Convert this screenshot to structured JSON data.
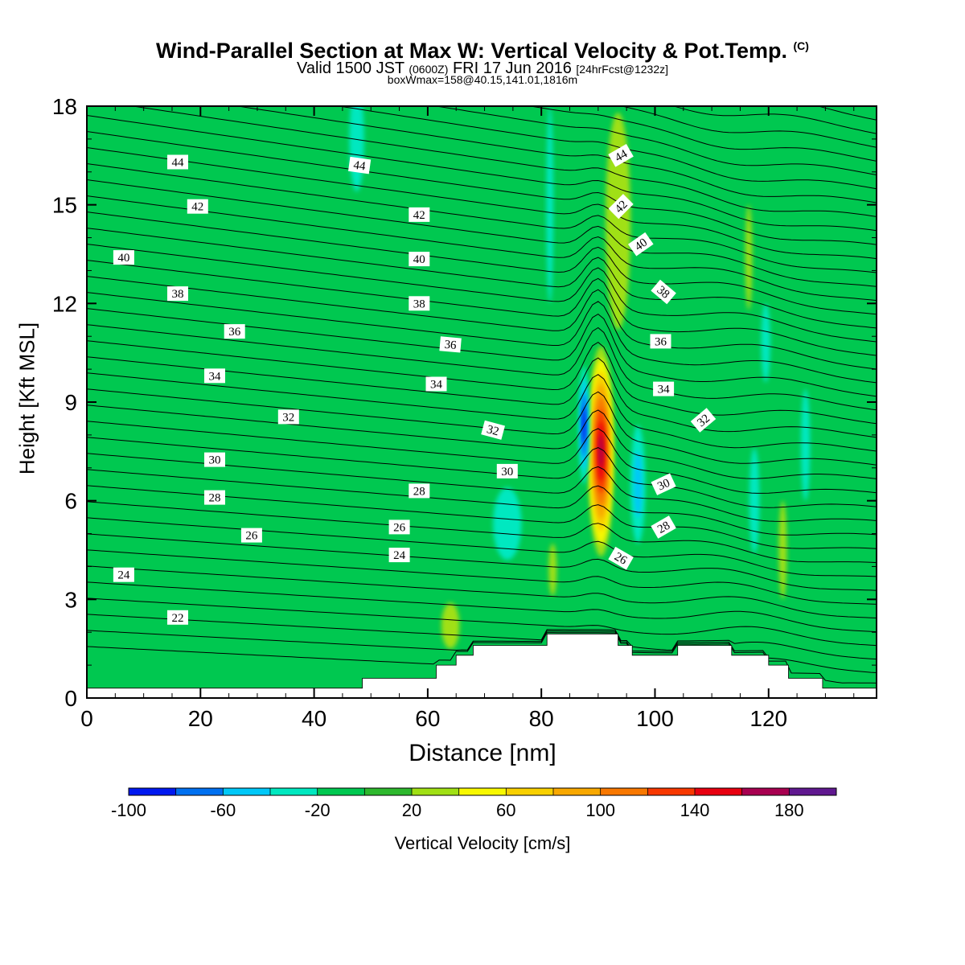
{
  "header": {
    "title": "Wind-Parallel Section at Max W: Vertical Velocity & Pot.Temp.",
    "copyright": "(C)",
    "valid_prefix": "Valid 1500 JST",
    "valid_zulu": "(0600Z)",
    "valid_date": "FRI 17 Jun 2016",
    "forecast": "[24hrFcst@1232z]",
    "boxwmax": "boxWmax=158@40.15,141.01,1816m"
  },
  "chart_data": {
    "type": "heatmap",
    "title": "Wind-Parallel Section at Max W: Vertical Velocity & Pot.Temp.",
    "xlabel": "Distance [nm]",
    "ylabel": "Height [Kft MSL]",
    "xlim": [
      0,
      139
    ],
    "ylim": [
      0,
      18
    ],
    "x_ticks": [
      0,
      20,
      40,
      60,
      80,
      100,
      120
    ],
    "y_ticks": [
      0,
      3,
      6,
      9,
      12,
      15,
      18
    ],
    "colorbar": {
      "label": "Vertical Velocity [cm/s]",
      "levels": [
        -100,
        -80,
        -60,
        -40,
        -20,
        0,
        20,
        40,
        60,
        80,
        100,
        120,
        140,
        160,
        180,
        200
      ],
      "tick_labels": [
        "-100",
        "-60",
        "-20",
        "20",
        "60",
        "100",
        "140",
        "180"
      ],
      "colors": [
        "#0018f0",
        "#0070f0",
        "#00c8f8",
        "#00e8c0",
        "#00c850",
        "#2db82d",
        "#a0e014",
        "#f8f800",
        "#f8d000",
        "#f8a800",
        "#f87800",
        "#f83800",
        "#e80010",
        "#a80050",
        "#601890"
      ]
    },
    "background_color": "#00c850",
    "theta_contours": {
      "interval": 1,
      "labels": [
        {
          "text": "44",
          "x": 16,
          "y": 16.3,
          "rot": 0
        },
        {
          "text": "44",
          "x": 48,
          "y": 16.2,
          "rot": 8
        },
        {
          "text": "44",
          "x": 94,
          "y": 16.5,
          "rot": -30
        },
        {
          "text": "42",
          "x": 19.5,
          "y": 14.95,
          "rot": 0
        },
        {
          "text": "42",
          "x": 58.5,
          "y": 14.7,
          "rot": 0
        },
        {
          "text": "42",
          "x": 94,
          "y": 14.95,
          "rot": -45
        },
        {
          "text": "40",
          "x": 6.5,
          "y": 13.4,
          "rot": 0
        },
        {
          "text": "40",
          "x": 58.5,
          "y": 13.35,
          "rot": 0
        },
        {
          "text": "40",
          "x": 97.5,
          "y": 13.8,
          "rot": -35
        },
        {
          "text": "38",
          "x": 16,
          "y": 12.3,
          "rot": 0
        },
        {
          "text": "38",
          "x": 58.5,
          "y": 12.0,
          "rot": 0
        },
        {
          "text": "38",
          "x": 101.5,
          "y": 12.35,
          "rot": 40
        },
        {
          "text": "36",
          "x": 26,
          "y": 11.15,
          "rot": 0
        },
        {
          "text": "36",
          "x": 64,
          "y": 10.75,
          "rot": 5
        },
        {
          "text": "36",
          "x": 101,
          "y": 10.85,
          "rot": 0
        },
        {
          "text": "34",
          "x": 22.5,
          "y": 9.8,
          "rot": 0
        },
        {
          "text": "34",
          "x": 61.5,
          "y": 9.55,
          "rot": 0
        },
        {
          "text": "34",
          "x": 101.5,
          "y": 9.4,
          "rot": 0
        },
        {
          "text": "32",
          "x": 35.5,
          "y": 8.55,
          "rot": 0
        },
        {
          "text": "32",
          "x": 71.5,
          "y": 8.15,
          "rot": 15
        },
        {
          "text": "32",
          "x": 108.5,
          "y": 8.45,
          "rot": -40
        },
        {
          "text": "30",
          "x": 22.5,
          "y": 7.25,
          "rot": 0
        },
        {
          "text": "30",
          "x": 74,
          "y": 6.9,
          "rot": 0
        },
        {
          "text": "30",
          "x": 101.5,
          "y": 6.5,
          "rot": -25
        },
        {
          "text": "28",
          "x": 22.5,
          "y": 6.1,
          "rot": 0
        },
        {
          "text": "28",
          "x": 58.5,
          "y": 6.3,
          "rot": 0
        },
        {
          "text": "28",
          "x": 101.5,
          "y": 5.2,
          "rot": -30
        },
        {
          "text": "26",
          "x": 29,
          "y": 4.95,
          "rot": 0
        },
        {
          "text": "26",
          "x": 55,
          "y": 5.2,
          "rot": 0
        },
        {
          "text": "26",
          "x": 94,
          "y": 4.25,
          "rot": 30
        },
        {
          "text": "24",
          "x": 6.5,
          "y": 3.75,
          "rot": 0
        },
        {
          "text": "24",
          "x": 55,
          "y": 4.35,
          "rot": 0
        },
        {
          "text": "22",
          "x": 16,
          "y": 2.45,
          "rot": 0
        }
      ]
    },
    "vertical_velocity_features": [
      {
        "x": 90.5,
        "y": 7.5,
        "rx": 2.3,
        "ry": 3.2,
        "v": 160
      },
      {
        "x": 87.5,
        "y": 8.3,
        "rx": 0.9,
        "ry": 1.8,
        "v": -90
      },
      {
        "x": 97,
        "y": 6.5,
        "rx": 1.3,
        "ry": 1.8,
        "v": -50
      },
      {
        "x": 74,
        "y": 5.3,
        "rx": 2.5,
        "ry": 1.1,
        "v": -30
      },
      {
        "x": 47.5,
        "y": 17,
        "rx": 1.3,
        "ry": 1.6,
        "v": -30
      },
      {
        "x": 81.5,
        "y": 15,
        "rx": 0.6,
        "ry": 3,
        "v": -30
      },
      {
        "x": 119.5,
        "y": 10.8,
        "rx": 0.8,
        "ry": 1.2,
        "v": -30
      },
      {
        "x": 117.5,
        "y": 6,
        "rx": 0.9,
        "ry": 1.6,
        "v": -30
      },
      {
        "x": 126.5,
        "y": 7.7,
        "rx": 0.8,
        "ry": 1.7,
        "v": -30
      },
      {
        "x": 93.5,
        "y": 14.5,
        "rx": 2.2,
        "ry": 3.3,
        "v": 30
      },
      {
        "x": 116.5,
        "y": 13.4,
        "rx": 0.6,
        "ry": 1.6,
        "v": 30
      },
      {
        "x": 122.5,
        "y": 4.5,
        "rx": 0.7,
        "ry": 1.5,
        "v": 30
      },
      {
        "x": 64,
        "y": 2.2,
        "rx": 1.6,
        "ry": 0.7,
        "v": 30
      },
      {
        "x": 82,
        "y": 3.9,
        "rx": 0.7,
        "ry": 0.8,
        "v": 30
      }
    ],
    "terrain_steps": [
      [
        0,
        0.3
      ],
      [
        48.5,
        0.6
      ],
      [
        61.5,
        1.0
      ],
      [
        65,
        1.3
      ],
      [
        68,
        1.6
      ],
      [
        81,
        1.95
      ],
      [
        93.5,
        1.6
      ],
      [
        96,
        1.3
      ],
      [
        104,
        1.6
      ],
      [
        113.5,
        1.3
      ],
      [
        120,
        1.0
      ],
      [
        123.5,
        0.6
      ],
      [
        129.5,
        0.3
      ],
      [
        139,
        0.3
      ]
    ]
  }
}
